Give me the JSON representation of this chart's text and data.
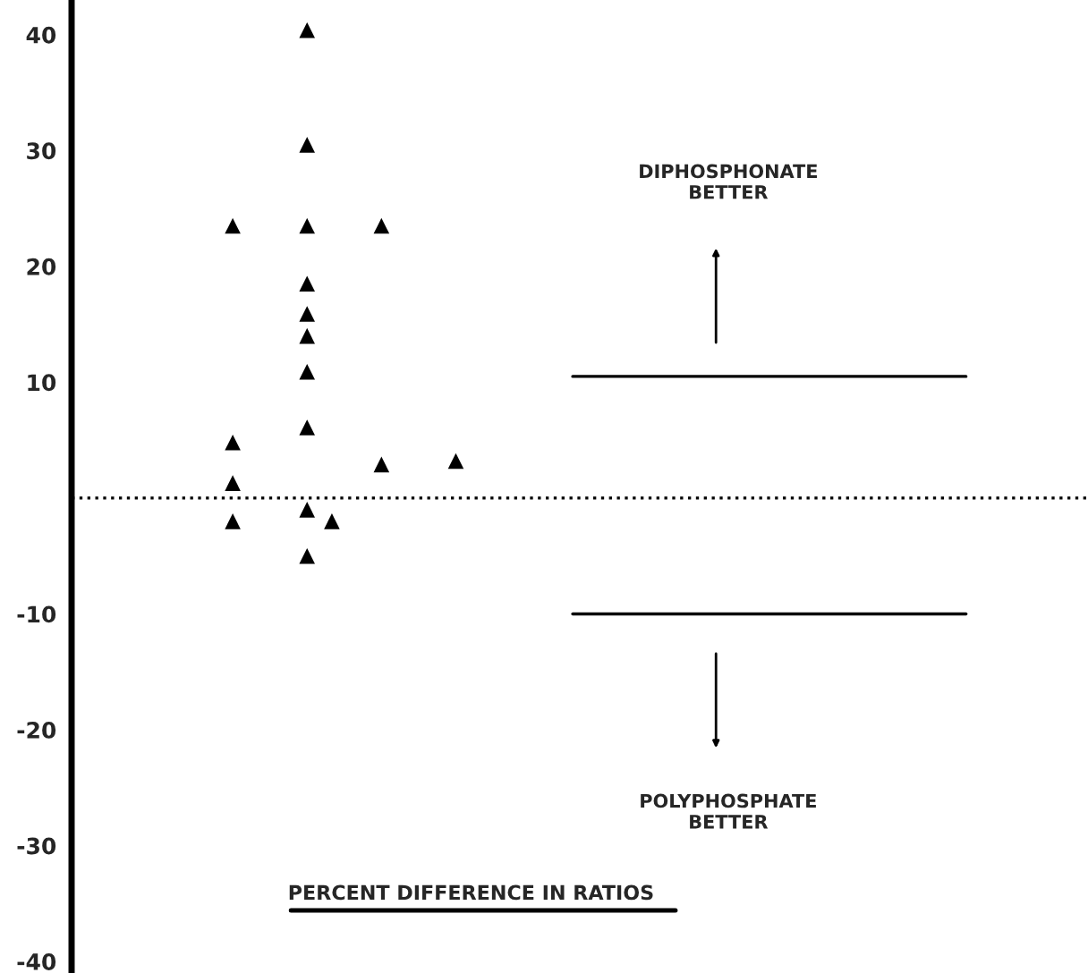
{
  "chart_data": {
    "type": "scatter",
    "xlabel": "PERCENT DIFFERENCE IN RATIOS",
    "categories": [
      null,
      null,
      null,
      null,
      null,
      null,
      null,
      null,
      null,
      null,
      null,
      null,
      null,
      null,
      null,
      null,
      null,
      null,
      null,
      null,
      null,
      null,
      null,
      null,
      null,
      null,
      null,
      null,
      null,
      null,
      null,
      null,
      null,
      null,
      null,
      null,
      null,
      null,
      null,
      null,
      null
    ],
    "series": [
      {
        "color": "#000000",
        "values": [
          null,
          null,
          null,
          null,
          null,
          null,
          23.5,
          null,
          null,
          40.4,
          -2.0,
          null,
          23.5,
          null,
          null,
          3.2,
          null,
          null,
          null,
          null,
          null,
          null,
          null,
          null,
          null,
          null,
          null,
          null,
          null,
          null,
          null,
          null,
          null,
          null,
          null,
          null,
          null,
          null,
          null,
          null,
          null
        ]
      },
      {
        "color": "#000000",
        "values": [
          null,
          null,
          null,
          null,
          null,
          null,
          4.8,
          null,
          null,
          30.5,
          null,
          null,
          2.9,
          null,
          null,
          null,
          null,
          null,
          null,
          null,
          null,
          null,
          null,
          null,
          null,
          null,
          null,
          null,
          null,
          null,
          null,
          null,
          null,
          null,
          null,
          null,
          null,
          null,
          null,
          null,
          null
        ]
      },
      {
        "color": "#000000",
        "values": [
          null,
          null,
          null,
          null,
          null,
          null,
          1.3,
          null,
          null,
          23.5,
          null,
          null,
          null,
          null,
          null,
          null,
          null,
          null,
          null,
          null,
          null,
          null,
          null,
          null,
          null,
          null,
          null,
          null,
          null,
          null,
          null,
          null,
          null,
          null,
          null,
          null,
          null,
          null,
          null,
          null,
          null
        ]
      },
      {
        "color": "#000000",
        "values": [
          null,
          null,
          null,
          null,
          null,
          null,
          -2.0,
          null,
          null,
          18.5,
          null,
          null,
          null,
          null,
          null,
          null,
          null,
          null,
          null,
          null,
          null,
          null,
          null,
          null,
          null,
          null,
          null,
          null,
          null,
          null,
          null,
          null,
          null,
          null,
          null,
          null,
          null,
          null,
          null,
          null,
          null
        ]
      },
      {
        "color": "#000000",
        "values": [
          null,
          null,
          null,
          null,
          null,
          null,
          null,
          null,
          null,
          15.9,
          null,
          null,
          null,
          null,
          null,
          null,
          null,
          null,
          null,
          null,
          null,
          null,
          null,
          null,
          null,
          null,
          null,
          null,
          null,
          null,
          null,
          null,
          null,
          null,
          null,
          null,
          null,
          null,
          null,
          null,
          null
        ]
      },
      {
        "color": "#000000",
        "values": [
          null,
          null,
          null,
          null,
          null,
          null,
          null,
          null,
          null,
          14.0,
          null,
          null,
          null,
          null,
          null,
          null,
          null,
          null,
          null,
          null,
          null,
          null,
          null,
          null,
          null,
          null,
          null,
          null,
          null,
          null,
          null,
          null,
          null,
          null,
          null,
          null,
          null,
          null,
          null,
          null,
          null
        ]
      },
      {
        "color": "#000000",
        "values": [
          null,
          null,
          null,
          null,
          null,
          null,
          null,
          null,
          null,
          10.9,
          null,
          null,
          null,
          null,
          null,
          null,
          null,
          null,
          null,
          null,
          null,
          null,
          null,
          null,
          null,
          null,
          null,
          null,
          null,
          null,
          null,
          null,
          null,
          null,
          null,
          null,
          null,
          null,
          null,
          null,
          null
        ]
      },
      {
        "color": "#000000",
        "values": [
          null,
          null,
          null,
          null,
          null,
          null,
          null,
          null,
          null,
          6.1,
          null,
          null,
          null,
          null,
          null,
          null,
          null,
          null,
          null,
          null,
          null,
          null,
          null,
          null,
          null,
          null,
          null,
          null,
          null,
          null,
          null,
          null,
          null,
          null,
          null,
          null,
          null,
          null,
          null,
          null,
          null
        ]
      },
      {
        "color": "#000000",
        "values": [
          null,
          null,
          null,
          null,
          null,
          null,
          null,
          null,
          null,
          -1.0,
          null,
          null,
          null,
          null,
          null,
          null,
          null,
          null,
          null,
          null,
          null,
          null,
          null,
          null,
          null,
          null,
          null,
          null,
          null,
          null,
          null,
          null,
          null,
          null,
          null,
          null,
          null,
          null,
          null,
          null,
          null
        ]
      },
      {
        "color": "#000000",
        "values": [
          null,
          null,
          null,
          null,
          null,
          null,
          null,
          null,
          null,
          -5.0,
          null,
          null,
          null,
          null,
          null,
          null,
          null,
          null,
          null,
          null,
          null,
          null,
          null,
          null,
          null,
          null,
          null,
          null,
          null,
          null,
          null,
          null,
          null,
          null,
          null,
          null,
          null,
          null,
          null,
          null,
          null
        ]
      }
    ],
    "ylim": [
      -41,
      43
    ],
    "yticks": [
      40,
      30,
      20,
      10,
      -10,
      -20,
      -30,
      -40
    ],
    "ref_lines": [
      {
        "axis": "y",
        "value": 0,
        "line_style": "dotted",
        "color": "#000000"
      },
      {
        "axis": "y",
        "value": 10.5,
        "color": "#000000"
      },
      {
        "axis": "y",
        "value": -10,
        "color": "#000000"
      }
    ],
    "annotations": [
      "DIPHOSPHONATE\nBETTER",
      "POLYPHOSPHATE\nBETTER"
    ],
    "marker": "triangle",
    "grid": false,
    "tick_labels": "y"
  }
}
